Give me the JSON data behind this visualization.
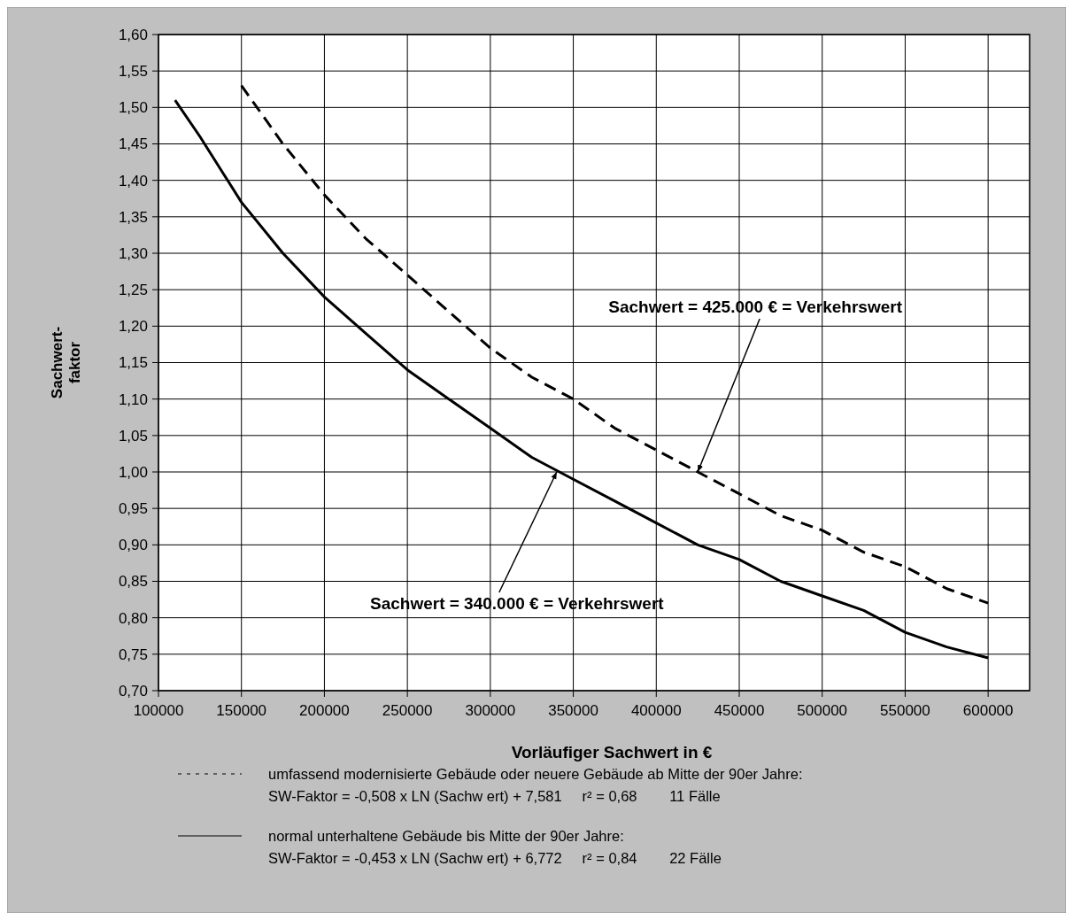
{
  "chart_data": {
    "type": "line",
    "xlabel": "Vorläufiger Sachwert in €",
    "ylabel": "Sachwert-\nfaktor",
    "xlim": [
      100000,
      625000
    ],
    "xticks": [
      100000,
      150000,
      200000,
      250000,
      300000,
      350000,
      400000,
      450000,
      500000,
      550000,
      600000
    ],
    "ylim": [
      0.7,
      1.6
    ],
    "yticks": [
      {
        "value": 0.7,
        "label": "0,70"
      },
      {
        "value": 0.75,
        "label": "0,75"
      },
      {
        "value": 0.8,
        "label": "0,80"
      },
      {
        "value": 0.85,
        "label": "0,85"
      },
      {
        "value": 0.9,
        "label": "0,90"
      },
      {
        "value": 0.95,
        "label": "0,95"
      },
      {
        "value": 1.0,
        "label": "1,00"
      },
      {
        "value": 1.05,
        "label": "1,05"
      },
      {
        "value": 1.1,
        "label": "1,10"
      },
      {
        "value": 1.15,
        "label": "1,15"
      },
      {
        "value": 1.2,
        "label": "1,20"
      },
      {
        "value": 1.25,
        "label": "1,25"
      },
      {
        "value": 1.3,
        "label": "1,30"
      },
      {
        "value": 1.35,
        "label": "1,35"
      },
      {
        "value": 1.4,
        "label": "1,40"
      },
      {
        "value": 1.45,
        "label": "1,45"
      },
      {
        "value": 1.5,
        "label": "1,50"
      },
      {
        "value": 1.55,
        "label": "1,55"
      },
      {
        "value": 1.6,
        "label": "1,60"
      }
    ],
    "grid": true,
    "legend": "bottom",
    "series": [
      {
        "name": "umfassend modernisierte Gebäude oder neuere Gebäude ab Mitte der 90er Jahre:",
        "color": "#000000",
        "line_style": "dashed",
        "x": [
          150000,
          175000,
          200000,
          225000,
          250000,
          275000,
          300000,
          325000,
          350000,
          375000,
          400000,
          425000,
          450000,
          475000,
          500000,
          525000,
          550000,
          575000,
          600000
        ],
        "values": [
          1.53,
          1.45,
          1.38,
          1.32,
          1.27,
          1.22,
          1.17,
          1.13,
          1.1,
          1.06,
          1.03,
          1.0,
          0.97,
          0.94,
          0.92,
          0.89,
          0.87,
          0.84,
          0.82
        ]
      },
      {
        "name": "normal unterhaltene Gebäude bis Mitte der 90er Jahre:",
        "color": "#000000",
        "line_style": "solid",
        "x": [
          110000,
          125000,
          150000,
          175000,
          200000,
          225000,
          250000,
          275000,
          300000,
          325000,
          350000,
          375000,
          400000,
          425000,
          450000,
          475000,
          500000,
          525000,
          550000,
          575000,
          600000
        ],
        "values": [
          1.51,
          1.46,
          1.37,
          1.3,
          1.24,
          1.19,
          1.14,
          1.1,
          1.06,
          1.02,
          0.99,
          0.96,
          0.93,
          0.9,
          0.88,
          0.85,
          0.83,
          0.81,
          0.78,
          0.76,
          0.745
        ]
      }
    ],
    "annotations": [
      {
        "text": "Sachwert = 425.000 € = Verkehrswert",
        "x": 425000,
        "y": 1.0
      },
      {
        "text": "Sachwert = 340.000 € = Verkehrswert",
        "x": 340000,
        "y": 1.0
      },
      "SW-Faktor = -0,508 x LN (Sachw ert) + 7,581     r² = 0,68        11 Fälle",
      "SW-Faktor = -0,453 x LN (Sachw ert) + 6,772     r² = 0,84        22 Fälle"
    ]
  }
}
